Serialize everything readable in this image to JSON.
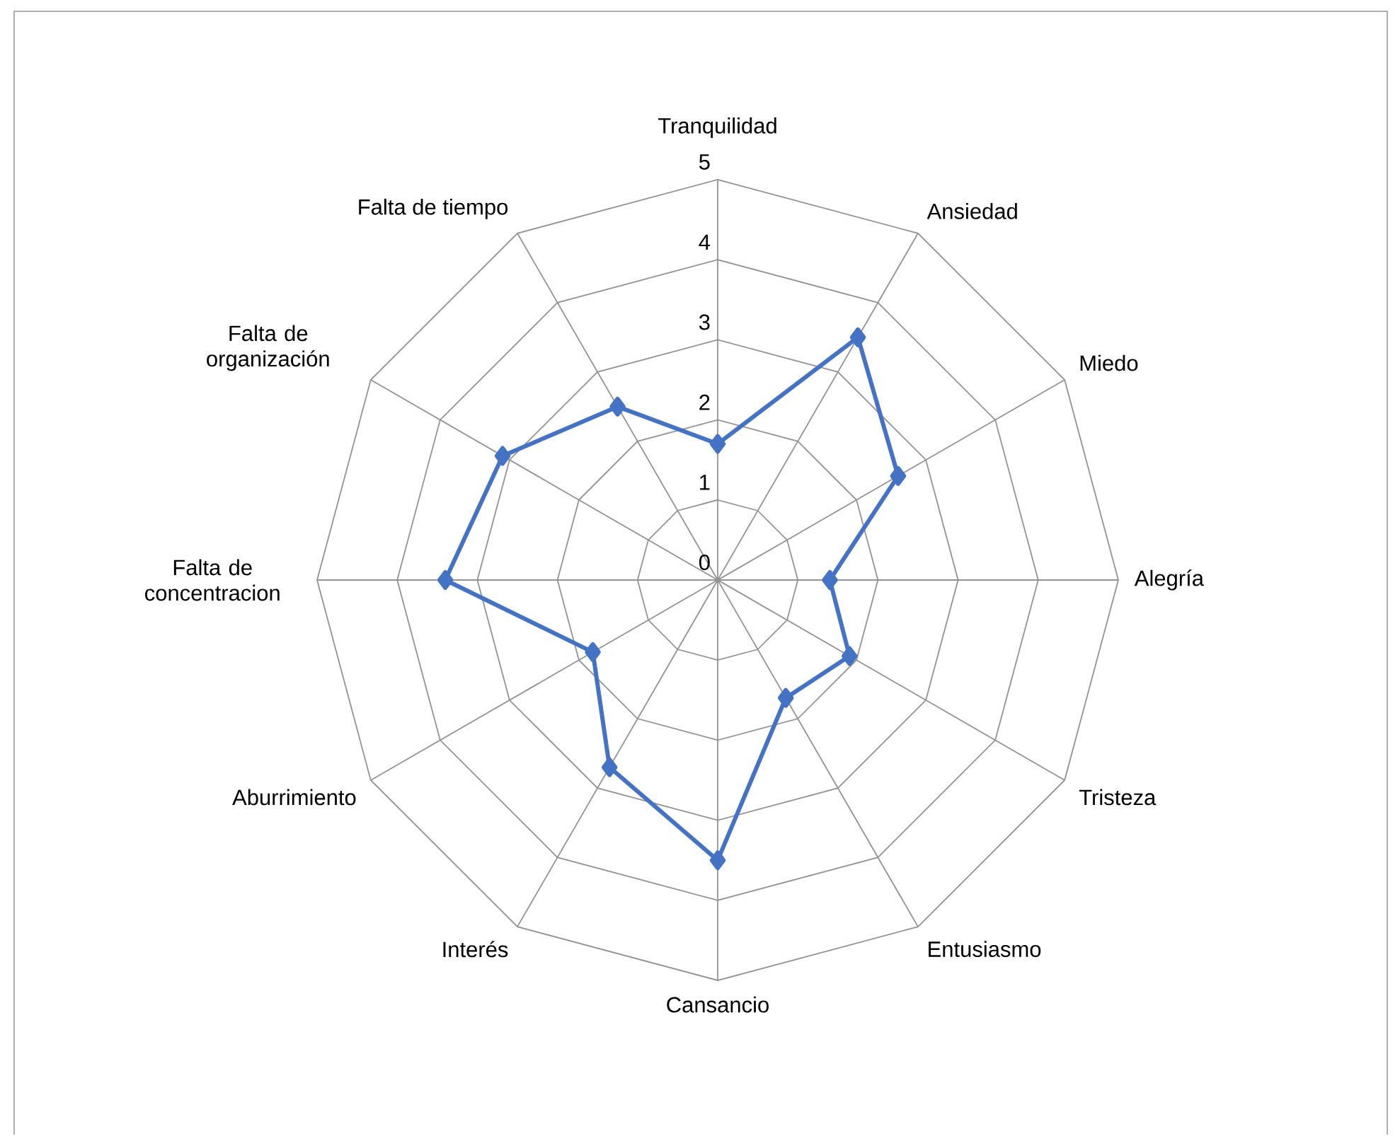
{
  "chart_data": {
    "type": "radar",
    "categories": [
      "Tranquilidad",
      "Ansiedad",
      "Miedo",
      "Alegría",
      "Tristeza",
      "Entusiasmo",
      "Cansancio",
      "Interés",
      "Aburrimiento",
      "Falta de concentracion",
      "Falta de organización",
      "Falta de tiempo"
    ],
    "series": [
      {
        "color": "#4472c4",
        "values": [
          1.7,
          3.5,
          2.6,
          1.4,
          1.9,
          1.7,
          3.5,
          2.7,
          1.8,
          3.4,
          3.1,
          2.5
        ]
      }
    ],
    "ylim": [
      0,
      5
    ],
    "yticks": [
      0,
      1,
      2,
      3,
      4,
      5
    ],
    "grid": true,
    "marker": "diamond"
  }
}
